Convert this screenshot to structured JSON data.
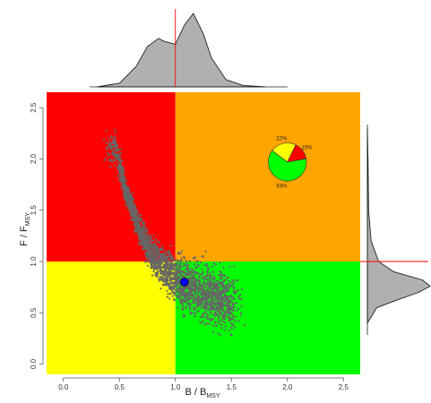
{
  "chart_data": {
    "type": "scatter",
    "title": "",
    "xlabel_main": "B / B",
    "xlabel_sub": "MSY",
    "ylabel_main": "F / F",
    "ylabel_sub": "MSY",
    "xlim": [
      -0.15,
      2.65
    ],
    "ylim": [
      -0.1,
      2.65
    ],
    "x_ticks": [
      0.0,
      0.5,
      1.0,
      1.5,
      2.0,
      2.5
    ],
    "y_ticks": [
      0.0,
      0.5,
      1.0,
      1.5,
      2.0,
      2.5
    ],
    "x_tick_labels": [
      "0.0",
      "0.5",
      "1.0",
      "1.5",
      "2.0",
      "2.5"
    ],
    "y_tick_labels": [
      "0.0",
      "0.5",
      "1.0",
      "1.5",
      "2.0",
      "2.5"
    ],
    "reference_lines": {
      "x": 1.0,
      "y": 1.0
    },
    "quadrants": [
      {
        "zone": "overfished-overfishing",
        "color": "#ff0000"
      },
      {
        "zone": "not-overfished-overfishing",
        "color": "#ffa500"
      },
      {
        "zone": "overfished-no-overfishing",
        "color": "#ffff00"
      },
      {
        "zone": "not-overfished-no-overfishing",
        "color": "#00ff00"
      }
    ],
    "cloud_color": "#666666",
    "cloud_trend": [
      {
        "x": 0.47,
        "y": 2.1
      },
      {
        "x": 0.55,
        "y": 1.72
      },
      {
        "x": 0.65,
        "y": 1.4
      },
      {
        "x": 0.75,
        "y": 1.15
      },
      {
        "x": 0.85,
        "y": 0.98
      },
      {
        "x": 0.95,
        "y": 0.88
      },
      {
        "x": 1.05,
        "y": 0.8
      },
      {
        "x": 1.2,
        "y": 0.72
      },
      {
        "x": 1.35,
        "y": 0.66
      },
      {
        "x": 1.52,
        "y": 0.6
      }
    ],
    "current_point": {
      "x": 1.08,
      "y": 0.8,
      "color": "#0000ff"
    },
    "pie": {
      "center": {
        "x": 2.0,
        "y": 1.97
      },
      "radius_in_x_units": 0.17,
      "slices": [
        {
          "label": "63%",
          "value": 63,
          "color": "#00ff00"
        },
        {
          "label": "22%",
          "value": 22,
          "color": "#ffff00"
        },
        {
          "label": "15%",
          "value": 15,
          "color": "#ff0000"
        }
      ]
    },
    "marginal_x_density": {
      "x": [
        0.3,
        0.5,
        0.65,
        0.75,
        0.85,
        0.9,
        1.0,
        1.08,
        1.16,
        1.25,
        1.32,
        1.45,
        1.6,
        1.8
      ],
      "density": [
        0.0,
        0.05,
        0.28,
        0.55,
        0.66,
        0.62,
        0.58,
        0.84,
        1.0,
        0.72,
        0.4,
        0.1,
        0.02,
        0.0
      ],
      "fill": "#b0b0b0"
    },
    "marginal_y_density": {
      "y": [
        0.4,
        0.55,
        0.62,
        0.7,
        0.76,
        0.82,
        0.9,
        1.0,
        1.2,
        1.5,
        2.0,
        2.3
      ],
      "density": [
        0.0,
        0.15,
        0.45,
        0.82,
        1.0,
        0.88,
        0.42,
        0.18,
        0.06,
        0.02,
        0.01,
        0.0
      ],
      "fill": "#b0b0b0"
    }
  }
}
